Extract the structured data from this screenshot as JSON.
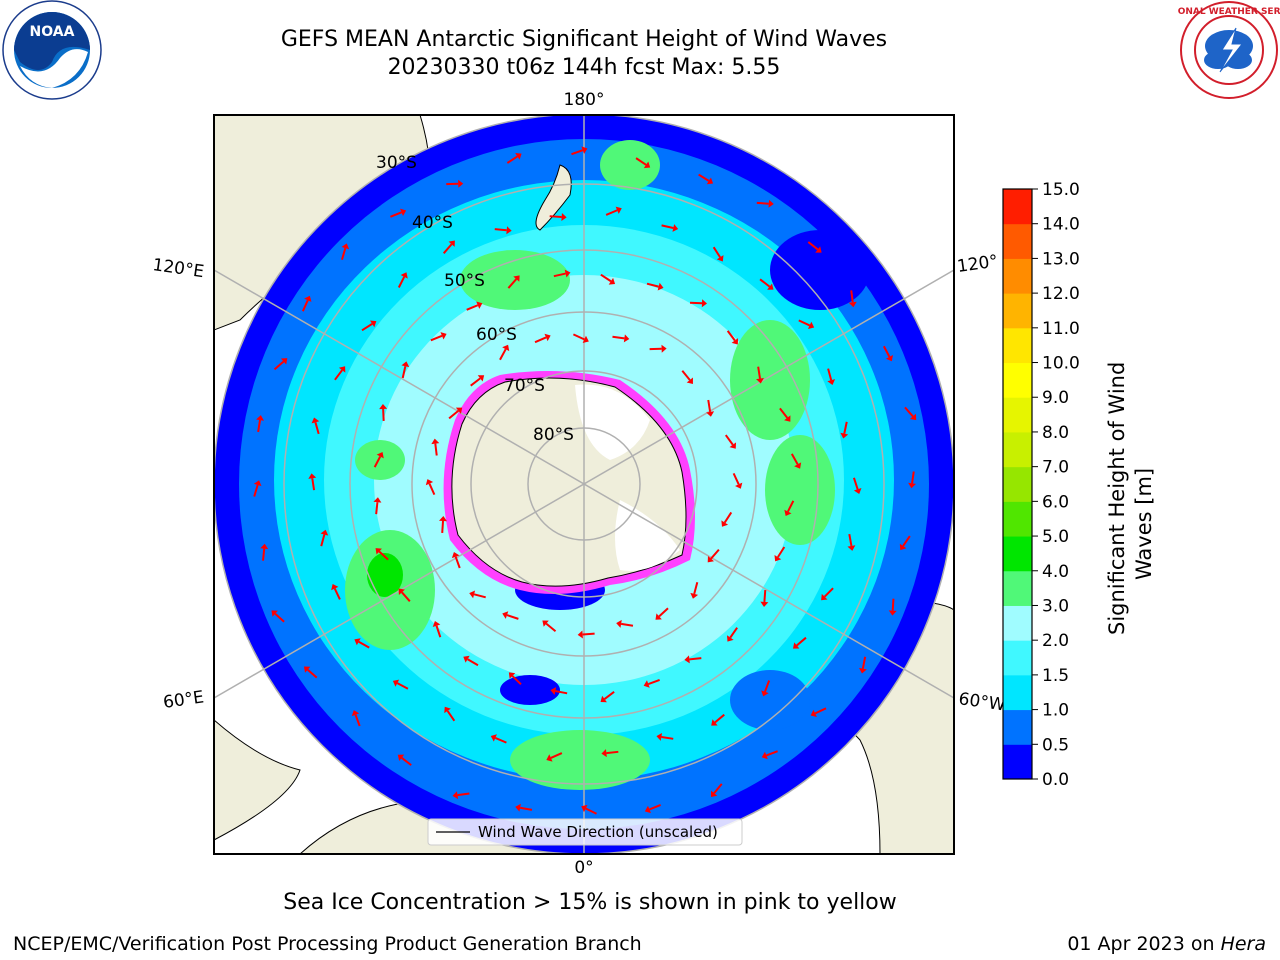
{
  "header": {
    "title_line1": "GEFS MEAN Antarctic Significant Height of Wind Waves",
    "title_line2": "20230330 t06z 144h fcst   Max: 5.55"
  },
  "logos": {
    "noaa_text": "NOAA",
    "nws_text": "NATIONAL WEATHER SERVICE"
  },
  "map": {
    "lon_labels": [
      "180°",
      "120°E",
      "120°",
      "60°E",
      "60°W",
      "0°"
    ],
    "lat_labels": [
      "30°S",
      "40°S",
      "50°S",
      "60°S",
      "70°S",
      "80°S"
    ],
    "legend_label": "Wind Wave Direction (unscaled)",
    "colors": {
      "land": "#efeedb",
      "grid": "#b0b0b0",
      "arrow": "#ff0000"
    }
  },
  "colorbar": {
    "label_line1": "Significant Height of Wind",
    "label_line2": "Waves [m]",
    "ticks": [
      "0.0",
      "0.5",
      "1.0",
      "1.5",
      "2.0",
      "3.0",
      "4.0",
      "5.0",
      "6.0",
      "7.0",
      "8.0",
      "9.0",
      "10.0",
      "11.0",
      "12.0",
      "13.0",
      "14.0",
      "15.0"
    ],
    "colors": [
      "#0000ff",
      "#0073ff",
      "#00e6ff",
      "#40f8ff",
      "#a0fcff",
      "#50f878",
      "#00e600",
      "#50e600",
      "#96e600",
      "#c8f000",
      "#e6f500",
      "#ffff00",
      "#ffe600",
      "#ffb400",
      "#ff8c00",
      "#ff5a00",
      "#ff1e00"
    ]
  },
  "notes": {
    "sea_ice": "Sea Ice Concentration > 15% is shown in pink to yellow"
  },
  "footer": {
    "org": "NCEP/EMC/Verification Post Processing Product Generation Branch",
    "date": "01 Apr 2023 on",
    "machine": "Hera"
  }
}
